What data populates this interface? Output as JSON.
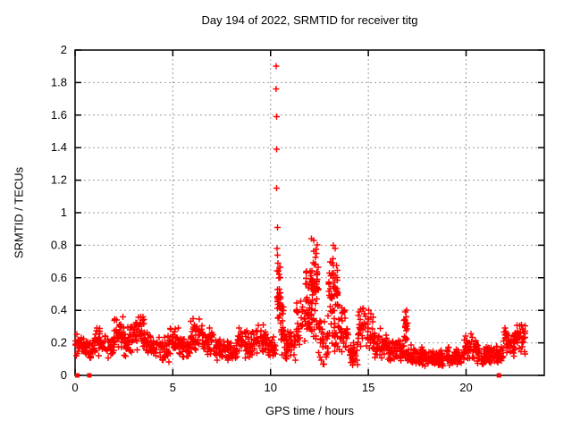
{
  "figure": {
    "title": "Day 194 of 2022, SRMTID for receiver titg",
    "xlabel": "GPS time / hours",
    "ylabel": "SRMTID / TECUs"
  },
  "chart_data": {
    "type": "scatter",
    "title": "Day 194 of 2022, SRMTID for receiver titg",
    "xlabel": "GPS time / hours",
    "ylabel": "SRMTID / TECUs",
    "xlim": [
      0,
      24
    ],
    "ylim": [
      0,
      2
    ],
    "xticks": {
      "values": [
        0,
        5,
        10,
        15,
        20
      ],
      "labels": [
        "0",
        "5",
        "10",
        "15",
        "20"
      ]
    },
    "yticks": {
      "values": [
        0,
        0.2,
        0.4,
        0.6,
        0.8,
        1,
        1.2,
        1.4,
        1.6,
        1.8,
        2
      ],
      "labels": [
        "0",
        "0.2",
        "0.4",
        "0.6",
        "0.8",
        "1",
        "1.2",
        "1.4",
        "1.6",
        "1.8",
        "2"
      ]
    },
    "grid": true,
    "legend": false,
    "marker": {
      "shape": "plus",
      "color": "#ff0000",
      "size": 7
    },
    "axis_color": "#000000",
    "grid_color": "#9a9a9a",
    "series": [
      {
        "name": "SRMTID",
        "peak_points": [
          [
            10.28,
            1.9
          ],
          [
            10.29,
            1.76
          ],
          [
            10.3,
            1.59
          ],
          [
            10.3,
            1.39
          ],
          [
            10.31,
            1.15
          ],
          [
            10.36,
            0.91
          ],
          [
            10.34,
            0.78
          ],
          [
            10.36,
            0.74
          ],
          [
            10.38,
            0.69
          ],
          [
            10.4,
            0.64
          ],
          [
            10.42,
            0.6
          ],
          [
            12.1,
            0.84
          ],
          [
            12.2,
            0.83
          ],
          [
            13.2,
            0.8
          ],
          [
            13.3,
            0.78
          ]
        ],
        "zero_points": [
          [
            0.11,
            0
          ],
          [
            0.73,
            0
          ],
          [
            21.68,
            0
          ]
        ],
        "dense_bands": [
          [
            0.02,
            0.5,
            0.1,
            0.26,
            30
          ],
          [
            0.5,
            1.0,
            0.08,
            0.22,
            30
          ],
          [
            1.0,
            1.6,
            0.1,
            0.3,
            40
          ],
          [
            1.6,
            2.0,
            0.1,
            0.26,
            26
          ],
          [
            2.0,
            2.5,
            0.13,
            0.38,
            36
          ],
          [
            2.5,
            3.1,
            0.1,
            0.34,
            40
          ],
          [
            3.1,
            3.6,
            0.13,
            0.4,
            36
          ],
          [
            3.6,
            4.3,
            0.1,
            0.3,
            45
          ],
          [
            4.3,
            4.8,
            0.08,
            0.26,
            32
          ],
          [
            4.8,
            5.3,
            0.12,
            0.3,
            32
          ],
          [
            5.3,
            5.9,
            0.1,
            0.26,
            38
          ],
          [
            5.9,
            6.5,
            0.14,
            0.36,
            40
          ],
          [
            6.5,
            7.1,
            0.12,
            0.3,
            40
          ],
          [
            7.1,
            8.3,
            0.08,
            0.24,
            75
          ],
          [
            8.3,
            9.0,
            0.1,
            0.3,
            45
          ],
          [
            9.0,
            9.8,
            0.11,
            0.32,
            50
          ],
          [
            9.8,
            10.25,
            0.1,
            0.26,
            30
          ],
          [
            10.32,
            10.5,
            0.25,
            0.72,
            28
          ],
          [
            10.5,
            10.7,
            0.1,
            0.5,
            24
          ],
          [
            10.7,
            11.3,
            0.08,
            0.28,
            38
          ],
          [
            11.3,
            11.78,
            0.15,
            0.48,
            32
          ],
          [
            11.78,
            12.45,
            0.3,
            0.84,
            66
          ],
          [
            11.85,
            12.4,
            0.18,
            0.42,
            24
          ],
          [
            12.45,
            12.95,
            0.05,
            0.4,
            34
          ],
          [
            12.95,
            13.45,
            0.28,
            0.8,
            52
          ],
          [
            13.0,
            13.45,
            0.14,
            0.34,
            18
          ],
          [
            13.45,
            14.0,
            0.12,
            0.45,
            40
          ],
          [
            14.0,
            14.45,
            0.04,
            0.22,
            30
          ],
          [
            14.45,
            15.25,
            0.15,
            0.43,
            55
          ],
          [
            15.25,
            16.0,
            0.08,
            0.3,
            50
          ],
          [
            16.0,
            16.82,
            0.07,
            0.22,
            52
          ],
          [
            16.82,
            17.0,
            0.1,
            0.43,
            22
          ],
          [
            17.0,
            17.8,
            0.06,
            0.2,
            52
          ],
          [
            17.8,
            19.0,
            0.05,
            0.16,
            78
          ],
          [
            19.0,
            19.9,
            0.05,
            0.18,
            58
          ],
          [
            19.9,
            20.6,
            0.08,
            0.26,
            46
          ],
          [
            20.6,
            21.2,
            0.05,
            0.18,
            38
          ],
          [
            21.2,
            21.9,
            0.06,
            0.2,
            44
          ],
          [
            21.9,
            22.5,
            0.1,
            0.3,
            42
          ],
          [
            22.5,
            23.05,
            0.12,
            0.34,
            40
          ]
        ]
      }
    ]
  }
}
